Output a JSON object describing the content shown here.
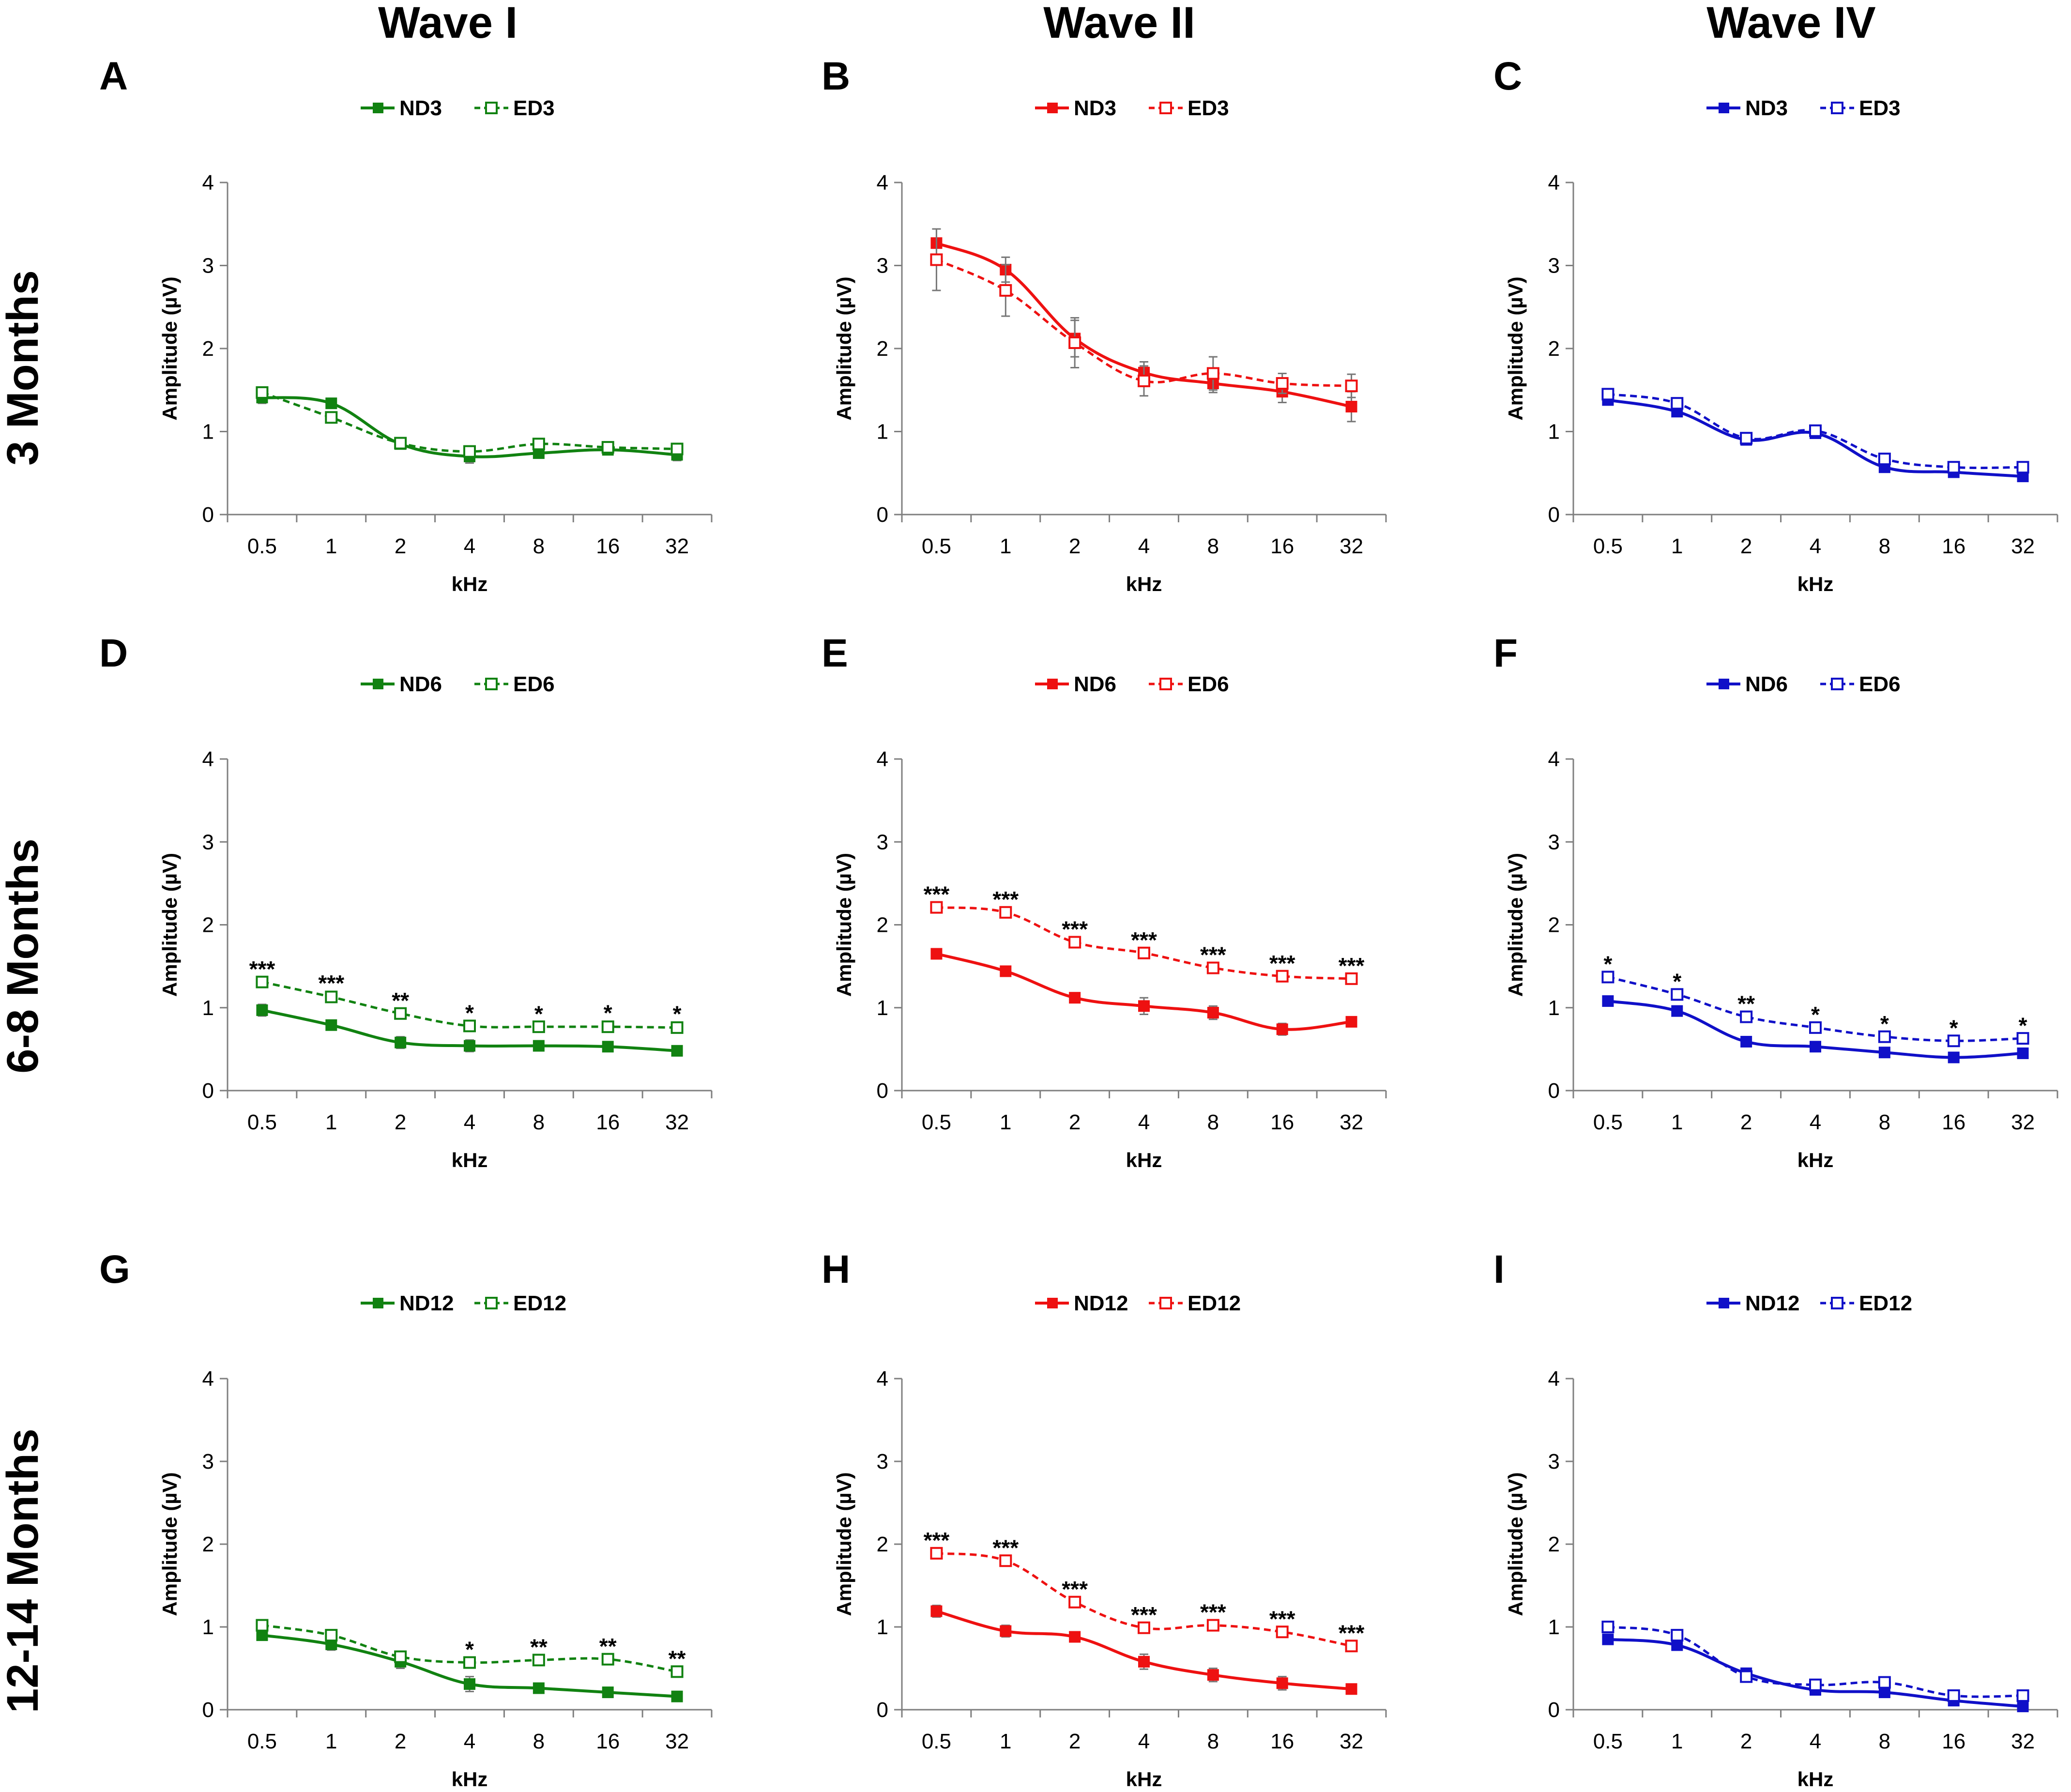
{
  "column_titles": [
    "Wave I",
    "Wave II",
    "Wave IV"
  ],
  "row_titles": [
    "3 Months",
    "6-8 Months",
    "12-14 Months"
  ],
  "colors": {
    "wave1": "#118211",
    "wave2": "#ee1111",
    "wave4": "#1010c8",
    "error_bar": "#777777",
    "axis": "#7f7f7f"
  },
  "chart_data": [
    {
      "panel": "A",
      "type": "line",
      "xlabel": "kHz",
      "ylabel": "Amplitude (µV)",
      "categories": [
        "0.5",
        "1",
        "2",
        "4",
        "8",
        "16",
        "32"
      ],
      "ylim": [
        0,
        4
      ],
      "yticks": [
        "0",
        "1",
        "2",
        "3",
        "4"
      ],
      "series": [
        {
          "name": "ND3",
          "style": "solid-filled",
          "values": [
            1.41,
            1.34,
            0.85,
            0.7,
            0.74,
            0.78,
            0.72
          ],
          "errors": [
            0.07,
            0.05,
            0.05,
            0.08,
            0.04,
            0.05,
            0.07
          ]
        },
        {
          "name": "ED3",
          "style": "dashed-open",
          "values": [
            1.47,
            1.17,
            0.86,
            0.76,
            0.85,
            0.81,
            0.79
          ],
          "errors": [
            0.05,
            0.06,
            0.04,
            0.04,
            0.04,
            0.05,
            0.04
          ]
        }
      ],
      "sig": [
        "",
        "",
        "",
        "",
        "",
        "",
        ""
      ]
    },
    {
      "panel": "B",
      "type": "line",
      "xlabel": "kHz",
      "ylabel": "Amplitude (µV)",
      "categories": [
        "0.5",
        "1",
        "2",
        "4",
        "8",
        "16",
        "32"
      ],
      "ylim": [
        0,
        4
      ],
      "yticks": [
        "0",
        "1",
        "2",
        "3",
        "4"
      ],
      "series": [
        {
          "name": "ND3",
          "style": "solid-filled",
          "values": [
            3.27,
            2.95,
            2.12,
            1.71,
            1.58,
            1.48,
            1.3
          ],
          "errors": [
            0.17,
            0.15,
            0.22,
            0.13,
            0.11,
            0.13,
            0.18
          ]
        },
        {
          "name": "ED3",
          "style": "dashed-open",
          "values": [
            3.07,
            2.7,
            2.07,
            1.61,
            1.7,
            1.58,
            1.55
          ],
          "errors": [
            0.37,
            0.31,
            0.3,
            0.18,
            0.2,
            0.12,
            0.14
          ]
        }
      ],
      "sig": [
        "",
        "",
        "",
        "",
        "",
        "",
        ""
      ]
    },
    {
      "panel": "C",
      "type": "line",
      "xlabel": "kHz",
      "ylabel": "Amplitude (µV)",
      "categories": [
        "0.5",
        "1",
        "2",
        "4",
        "8",
        "16",
        "32"
      ],
      "ylim": [
        0,
        4
      ],
      "yticks": [
        "0",
        "1",
        "2",
        "3",
        "4"
      ],
      "series": [
        {
          "name": "ND3",
          "style": "solid-filled",
          "values": [
            1.38,
            1.24,
            0.9,
            0.98,
            0.57,
            0.51,
            0.46
          ],
          "errors": [
            0.05,
            0.04,
            0.05,
            0.03,
            0.06,
            0.05,
            0.03
          ]
        },
        {
          "name": "ED3",
          "style": "dashed-open",
          "values": [
            1.45,
            1.34,
            0.92,
            1.01,
            0.67,
            0.57,
            0.57
          ],
          "errors": [
            0.04,
            0.04,
            0.03,
            0.03,
            0.04,
            0.03,
            0.03
          ]
        }
      ],
      "sig": [
        "",
        "",
        "",
        "",
        "",
        "",
        ""
      ]
    },
    {
      "panel": "D",
      "type": "line",
      "xlabel": "kHz",
      "ylabel": "Amplitude (µV)",
      "categories": [
        "0.5",
        "1",
        "2",
        "4",
        "8",
        "16",
        "32"
      ],
      "ylim": [
        0,
        4
      ],
      "yticks": [
        "0",
        "1",
        "2",
        "3",
        "4"
      ],
      "series": [
        {
          "name": "ND6",
          "style": "solid-filled",
          "values": [
            0.97,
            0.79,
            0.58,
            0.54,
            0.54,
            0.53,
            0.48
          ],
          "errors": [
            0.07,
            0.06,
            0.07,
            0.07,
            0.04,
            0.03,
            0.06
          ]
        },
        {
          "name": "ED6",
          "style": "dashed-open",
          "values": [
            1.31,
            1.13,
            0.93,
            0.78,
            0.77,
            0.77,
            0.76
          ],
          "errors": [
            0.04,
            0.05,
            0.04,
            0.04,
            0.04,
            0.05,
            0.05
          ]
        }
      ],
      "sig": [
        "***",
        "***",
        "**",
        "*",
        "*",
        "*",
        "*"
      ]
    },
    {
      "panel": "E",
      "type": "line",
      "xlabel": "kHz",
      "ylabel": "Amplitude (µV)",
      "categories": [
        "0.5",
        "1",
        "2",
        "4",
        "8",
        "16",
        "32"
      ],
      "ylim": [
        0,
        4
      ],
      "yticks": [
        "0",
        "1",
        "2",
        "3",
        "4"
      ],
      "series": [
        {
          "name": "ND6",
          "style": "solid-filled",
          "values": [
            1.65,
            1.44,
            1.12,
            1.02,
            0.94,
            0.74,
            0.83
          ],
          "errors": [
            0.06,
            0.06,
            0.04,
            0.1,
            0.08,
            0.07,
            0.05
          ]
        },
        {
          "name": "ED6",
          "style": "dashed-open",
          "values": [
            2.21,
            2.15,
            1.79,
            1.66,
            1.48,
            1.38,
            1.35
          ],
          "errors": [
            0.04,
            0.04,
            0.04,
            0.04,
            0.04,
            0.04,
            0.04
          ]
        }
      ],
      "sig": [
        "***",
        "***",
        "***",
        "***",
        "***",
        "***",
        "***"
      ]
    },
    {
      "panel": "F",
      "type": "line",
      "xlabel": "kHz",
      "ylabel": "Amplitude (µV)",
      "categories": [
        "0.5",
        "1",
        "2",
        "4",
        "8",
        "16",
        "32"
      ],
      "ylim": [
        0,
        4
      ],
      "yticks": [
        "0",
        "1",
        "2",
        "3",
        "4"
      ],
      "series": [
        {
          "name": "ND6",
          "style": "solid-filled",
          "values": [
            1.08,
            0.96,
            0.59,
            0.53,
            0.46,
            0.4,
            0.45
          ],
          "errors": [
            0.04,
            0.04,
            0.04,
            0.03,
            0.03,
            0.04,
            0.04
          ]
        },
        {
          "name": "ED6",
          "style": "dashed-open",
          "values": [
            1.37,
            1.16,
            0.89,
            0.76,
            0.65,
            0.6,
            0.63
          ],
          "errors": [
            0.04,
            0.04,
            0.04,
            0.04,
            0.04,
            0.04,
            0.04
          ]
        }
      ],
      "sig": [
        "*",
        "*",
        "**",
        "*",
        "*",
        "*",
        "*"
      ]
    },
    {
      "panel": "G",
      "type": "line",
      "xlabel": "kHz",
      "ylabel": "Amplitude (µV)",
      "categories": [
        "0.5",
        "1",
        "2",
        "4",
        "8",
        "16",
        "32"
      ],
      "ylim": [
        0,
        4
      ],
      "yticks": [
        "0",
        "1",
        "2",
        "3",
        "4"
      ],
      "series": [
        {
          "name": "ND12",
          "style": "solid-filled",
          "values": [
            0.9,
            0.79,
            0.58,
            0.31,
            0.26,
            0.21,
            0.16
          ],
          "errors": [
            0.05,
            0.07,
            0.08,
            0.09,
            0.04,
            0.03,
            0.06
          ]
        },
        {
          "name": "ED12",
          "style": "dashed-open",
          "values": [
            1.02,
            0.9,
            0.64,
            0.57,
            0.6,
            0.61,
            0.46
          ],
          "errors": [
            0.04,
            0.04,
            0.04,
            0.04,
            0.04,
            0.04,
            0.04
          ]
        }
      ],
      "sig": [
        "",
        "",
        "",
        "*",
        "**",
        "**",
        "**"
      ]
    },
    {
      "panel": "H",
      "type": "line",
      "xlabel": "kHz",
      "ylabel": "Amplitude (µV)",
      "categories": [
        "0.5",
        "1",
        "2",
        "4",
        "8",
        "16",
        "32"
      ],
      "ylim": [
        0,
        4
      ],
      "yticks": [
        "0",
        "1",
        "2",
        "3",
        "4"
      ],
      "series": [
        {
          "name": "ND12",
          "style": "solid-filled",
          "values": [
            1.19,
            0.95,
            0.88,
            0.58,
            0.42,
            0.32,
            0.25
          ],
          "errors": [
            0.07,
            0.07,
            0.04,
            0.09,
            0.08,
            0.08,
            0.05
          ]
        },
        {
          "name": "ED12",
          "style": "dashed-open",
          "values": [
            1.89,
            1.8,
            1.3,
            0.99,
            1.02,
            0.94,
            0.77
          ],
          "errors": [
            0.04,
            0.04,
            0.04,
            0.04,
            0.04,
            0.04,
            0.04
          ]
        }
      ],
      "sig": [
        "***",
        "***",
        "***",
        "***",
        "***",
        "***",
        "***"
      ]
    },
    {
      "panel": "I",
      "type": "line",
      "xlabel": "kHz",
      "ylabel": "Amplitude (µV)",
      "categories": [
        "0.5",
        "1",
        "2",
        "4",
        "8",
        "16",
        "32"
      ],
      "ylim": [
        0,
        4
      ],
      "yticks": [
        "0",
        "1",
        "2",
        "3",
        "4"
      ],
      "series": [
        {
          "name": "ND12",
          "style": "solid-filled",
          "values": [
            0.85,
            0.78,
            0.44,
            0.24,
            0.21,
            0.11,
            0.04
          ],
          "errors": [
            0.03,
            0.03,
            0.03,
            0.03,
            0.03,
            0.03,
            0.03
          ]
        },
        {
          "name": "ED12",
          "style": "dashed-open",
          "values": [
            1.0,
            0.9,
            0.4,
            0.3,
            0.33,
            0.17,
            0.17
          ],
          "errors": [
            0.03,
            0.03,
            0.03,
            0.03,
            0.03,
            0.03,
            0.03
          ]
        }
      ],
      "sig": [
        "",
        "",
        "",
        "",
        "",
        "",
        ""
      ]
    }
  ]
}
